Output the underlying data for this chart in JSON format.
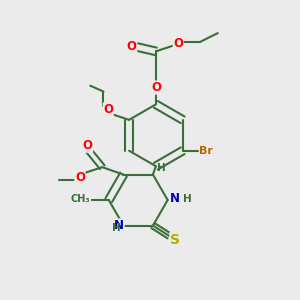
{
  "bg_color": "#ebebeb",
  "bond_color": "#3a6e3a",
  "bond_width": 1.5,
  "atom_colors": {
    "O": "#ff0000",
    "N": "#0000bb",
    "S": "#bbaa00",
    "Br": "#bb6600",
    "C": "#3a6e3a",
    "H": "#3a6e3a"
  },
  "font_size": 8.5
}
